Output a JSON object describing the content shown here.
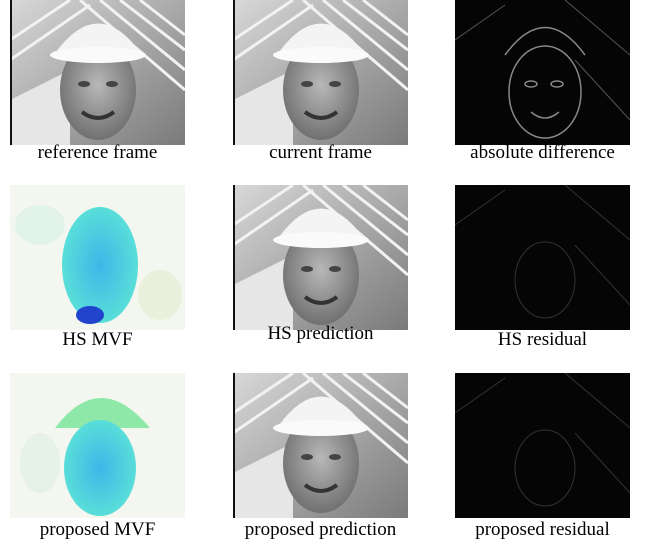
{
  "figure": {
    "panels": [
      {
        "caption": "reference frame"
      },
      {
        "caption": "current frame"
      },
      {
        "caption": "absolute difference"
      },
      {
        "caption": "HS MVF"
      },
      {
        "caption": "HS prediction"
      },
      {
        "caption": "HS residual"
      },
      {
        "caption": "proposed MVF"
      },
      {
        "caption": "proposed prediction"
      },
      {
        "caption": "proposed residual"
      }
    ]
  }
}
